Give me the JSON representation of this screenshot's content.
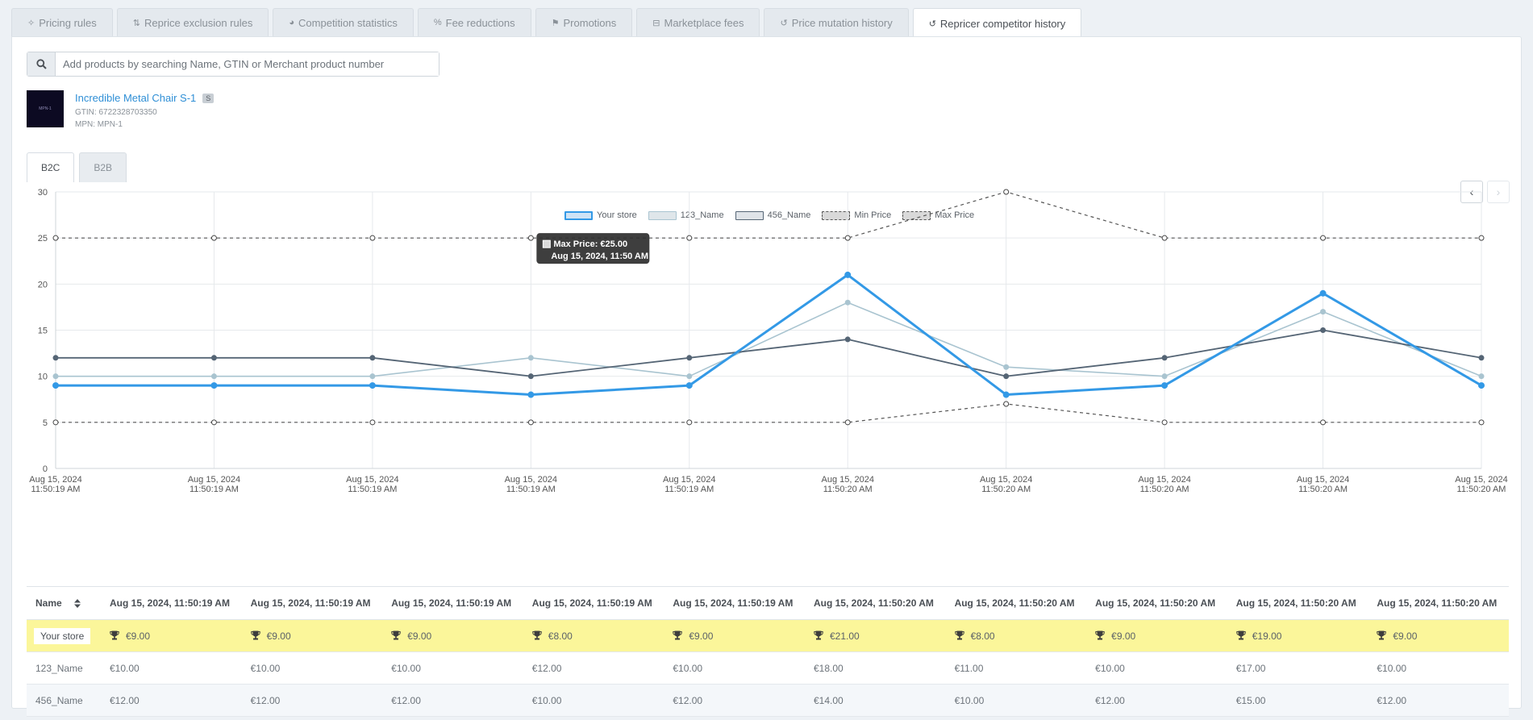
{
  "tabs": [
    {
      "label": "Pricing rules",
      "icon": "sliders-icon",
      "glyph": "✧"
    },
    {
      "label": "Reprice exclusion rules",
      "icon": "sort-icon",
      "glyph": "⇅"
    },
    {
      "label": "Competition statistics",
      "icon": "pie-chart-icon",
      "glyph": "◕"
    },
    {
      "label": "Fee reductions",
      "icon": "percent-icon",
      "glyph": "%"
    },
    {
      "label": "Promotions",
      "icon": "megaphone-icon",
      "glyph": "⚑"
    },
    {
      "label": "Marketplace fees",
      "icon": "money-icon",
      "glyph": "⊟"
    },
    {
      "label": "Price mutation history",
      "icon": "history-icon",
      "glyph": "↺"
    },
    {
      "label": "Repricer competitor history",
      "icon": "history-icon",
      "glyph": "↺",
      "active": true
    }
  ],
  "search": {
    "placeholder": "Add products by searching Name, GTIN or Merchant product number"
  },
  "product": {
    "name": "Incredible Metal Chair S-1",
    "badge": "S",
    "gtin": "GTIN: 6722328703350",
    "mpn": "MPN: MPN-1",
    "thumb_text": "MPN-1"
  },
  "subtabs": [
    {
      "label": "B2C",
      "active": true
    },
    {
      "label": "B2B"
    }
  ],
  "chart_data": {
    "type": "line",
    "ylim": [
      0,
      30
    ],
    "yticks": [
      0,
      5,
      10,
      15,
      20,
      25,
      30
    ],
    "x": [
      [
        "Aug 15, 2024",
        "11:50:19 AM"
      ],
      [
        "Aug 15, 2024",
        "11:50:19 AM"
      ],
      [
        "Aug 15, 2024",
        "11:50:19 AM"
      ],
      [
        "Aug 15, 2024",
        "11:50:19 AM"
      ],
      [
        "Aug 15, 2024",
        "11:50:19 AM"
      ],
      [
        "Aug 15, 2024",
        "11:50:20 AM"
      ],
      [
        "Aug 15, 2024",
        "11:50:20 AM"
      ],
      [
        "Aug 15, 2024",
        "11:50:20 AM"
      ],
      [
        "Aug 15, 2024",
        "11:50:20 AM"
      ],
      [
        "Aug 15, 2024",
        "11:50:20 AM"
      ]
    ],
    "series": [
      {
        "name": "Your store",
        "color": "#3399e6",
        "values": [
          9,
          9,
          9,
          8,
          9,
          21,
          8,
          9,
          19,
          9
        ]
      },
      {
        "name": "123_Name",
        "color": "#a9c4d0",
        "values": [
          10,
          10,
          10,
          12,
          10,
          18,
          11,
          10,
          17,
          10
        ]
      },
      {
        "name": "456_Name",
        "color": "#556575",
        "values": [
          12,
          12,
          12,
          10,
          12,
          14,
          10,
          12,
          15,
          12
        ]
      },
      {
        "name": "Min Price",
        "color": "#555555",
        "dashed": true,
        "values": [
          5,
          5,
          5,
          5,
          5,
          5,
          7,
          5,
          5,
          5
        ]
      },
      {
        "name": "Max Price",
        "color": "#555555",
        "dashed": true,
        "values": [
          25,
          25,
          25,
          25,
          25,
          25,
          30,
          25,
          25,
          25
        ]
      }
    ],
    "tooltip": {
      "line1": "Max Price: €25.00",
      "line2": "Aug 15, 2024, 11:50 AM",
      "point_index": 3,
      "series_index": 4
    },
    "grid": true,
    "legend": "top-center"
  },
  "table": {
    "name_header": "Name",
    "columns": [
      "Aug 15, 2024, 11:50:19 AM",
      "Aug 15, 2024, 11:50:19 AM",
      "Aug 15, 2024, 11:50:19 AM",
      "Aug 15, 2024, 11:50:19 AM",
      "Aug 15, 2024, 11:50:19 AM",
      "Aug 15, 2024, 11:50:20 AM",
      "Aug 15, 2024, 11:50:20 AM",
      "Aug 15, 2024, 11:50:20 AM",
      "Aug 15, 2024, 11:50:20 AM",
      "Aug 15, 2024, 11:50:20 AM"
    ],
    "rows": [
      {
        "name": "Your store",
        "highlight": true,
        "trophy": true,
        "cells": [
          "€9.00",
          "€9.00",
          "€9.00",
          "€8.00",
          "€9.00",
          "€21.00",
          "€8.00",
          "€9.00",
          "€19.00",
          "€9.00"
        ]
      },
      {
        "name": "123_Name",
        "cells": [
          "€10.00",
          "€10.00",
          "€10.00",
          "€12.00",
          "€10.00",
          "€18.00",
          "€11.00",
          "€10.00",
          "€17.00",
          "€10.00"
        ]
      },
      {
        "name": "456_Name",
        "alt": true,
        "cells": [
          "€12.00",
          "€12.00",
          "€12.00",
          "€10.00",
          "€12.00",
          "€14.00",
          "€10.00",
          "€12.00",
          "€15.00",
          "€12.00"
        ]
      }
    ]
  },
  "nav": {
    "prev": "‹",
    "next": "›"
  }
}
